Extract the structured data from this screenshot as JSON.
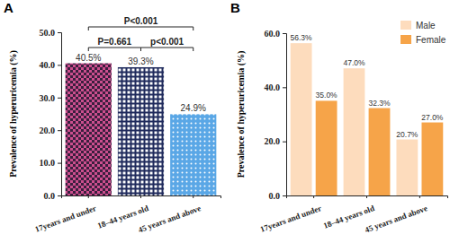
{
  "chart_data": [
    {
      "type": "bar",
      "title": "A",
      "categories": [
        "17years and under",
        "18–44 years old",
        "45 years and above"
      ],
      "values": [
        40.5,
        39.3,
        24.9
      ],
      "value_labels": [
        "40.5%",
        "39.3%",
        "24.9%"
      ],
      "colors": [
        "#cc4f8e",
        "#1f2a5c",
        "#5aa7e6"
      ],
      "ylabel": "Prevalence of hyperuricemia (%)",
      "ylim": [
        0,
        50
      ],
      "yticks": [
        {
          "value": 0,
          "label": "0.0"
        },
        {
          "value": 10,
          "label": "10.0"
        },
        {
          "value": 20,
          "label": "20.0"
        },
        {
          "value": 30,
          "label": "30.0"
        },
        {
          "value": 40,
          "label": "40.0"
        },
        {
          "value": 50,
          "label": "50.0"
        }
      ],
      "data_labels": true,
      "annotations": [
        {
          "text": "P=0.661",
          "from": 0,
          "to": 1
        },
        {
          "text": "P<0.001",
          "from": 0,
          "to": 2
        },
        {
          "text": "p<0.001",
          "from": 1,
          "to": 2
        }
      ]
    },
    {
      "type": "bar",
      "title": "B",
      "categories": [
        "17years and under",
        "18–44 years old",
        "45 years and above"
      ],
      "series": [
        {
          "name": "Male",
          "color": "#fddcbd",
          "values": [
            56.3,
            47.0,
            20.7
          ],
          "value_labels": [
            "56.3%",
            "47.0%",
            "20.7%"
          ]
        },
        {
          "name": "Female",
          "color": "#f6a449",
          "values": [
            35.0,
            32.3,
            27.0
          ],
          "value_labels": [
            "35.0%",
            "32.3%",
            "27.0%"
          ]
        }
      ],
      "ylabel": "Prevalence of hyperuricemia (%)",
      "ylim": [
        0,
        60
      ],
      "yticks": [
        {
          "value": 0,
          "label": "0.0"
        },
        {
          "value": 20,
          "label": "20.0"
        },
        {
          "value": 40,
          "label": "40.0"
        },
        {
          "value": 60,
          "label": "60.0"
        }
      ],
      "data_labels": true,
      "legend": "top-right"
    }
  ]
}
